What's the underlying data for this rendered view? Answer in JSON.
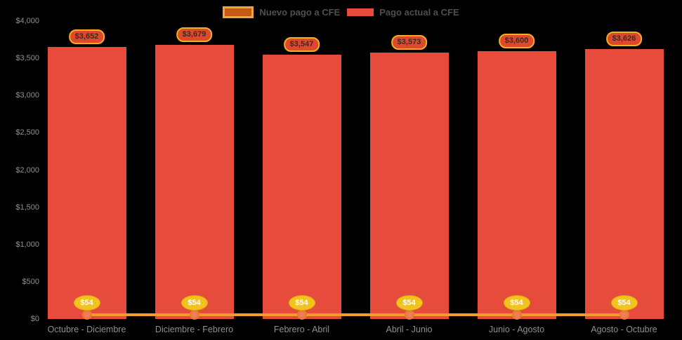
{
  "legend": {
    "items": [
      {
        "label": "Nuevo pago a CFE",
        "swatch_fill": "#c45a13",
        "swatch_border": "#efa43c",
        "bordered": true
      },
      {
        "label": "Pago actual a CFE",
        "swatch_fill": "#e64b3c",
        "swatch_border": "#e64b3c",
        "bordered": false
      }
    ]
  },
  "chart_data": {
    "type": "bar",
    "background": "#000000",
    "grid": false,
    "legend_position": "top-center",
    "categories": [
      "Octubre - Diciembre",
      "Diciembre - Febrero",
      "Febrero - Abril",
      "Abril - Junio",
      "Junio - Agosto",
      "Agosto - Octubre"
    ],
    "ylim": [
      0,
      4000
    ],
    "yticks": [
      {
        "value": 0,
        "label": "$0"
      },
      {
        "value": 500,
        "label": "$500"
      },
      {
        "value": 1000,
        "label": "$1,000"
      },
      {
        "value": 1500,
        "label": "$1,500"
      },
      {
        "value": 2000,
        "label": "$2,000"
      },
      {
        "value": 2500,
        "label": "$2,500"
      },
      {
        "value": 3000,
        "label": "$3,000"
      },
      {
        "value": 3500,
        "label": "$3,500"
      },
      {
        "value": 4000,
        "label": "$4,000"
      }
    ],
    "series": [
      {
        "name": "Pago actual a CFE",
        "type": "bar",
        "color": "#e64b3c",
        "values": [
          3652,
          3679,
          3547,
          3573,
          3600,
          3626
        ],
        "labels": [
          "$3,652",
          "$3,679",
          "$3,547",
          "$3,573",
          "$3,600",
          "$3,626"
        ],
        "label_style": {
          "fill": "#e0482e",
          "border": "#f2b01e",
          "text": "#3b2b22"
        }
      },
      {
        "name": "Nuevo pago a CFE",
        "type": "line",
        "color": "#f59b2c",
        "values": [
          54,
          54,
          54,
          54,
          54,
          54
        ],
        "labels": [
          "$54",
          "$54",
          "$54",
          "$54",
          "$54",
          "$54"
        ],
        "marker": {
          "ring": "#e4802a",
          "fill": "#f5796b"
        },
        "label_style": {
          "fill": "#f2c21d",
          "border": "#dda814",
          "text": "#ffffff"
        }
      }
    ]
  }
}
